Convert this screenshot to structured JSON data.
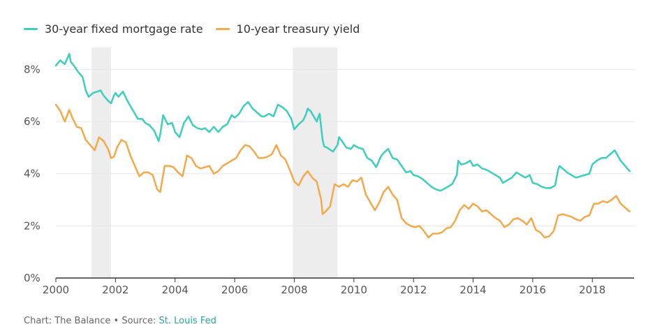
{
  "colors": {
    "mortgage": "#3dcfbd",
    "treasury": "#f5a94a",
    "recession": "#ededed",
    "grid": "#e6e6e6",
    "axis": "#333333",
    "source_link": "#27a69a"
  },
  "legend": {
    "mortgage_label": "30-year fixed mortgage rate",
    "treasury_label": "10-year treasury yield"
  },
  "footer": {
    "credit": "Chart: The Balance • Source: ",
    "source": "St. Louis Fed"
  },
  "chart_data": {
    "type": "line",
    "xlim": [
      2000,
      2019.4
    ],
    "ylim": [
      0,
      8.6
    ],
    "x_ticks": [
      2000,
      2002,
      2004,
      2006,
      2008,
      2010,
      2012,
      2014,
      2016,
      2018
    ],
    "y_ticks": [
      0,
      2,
      4,
      6,
      8
    ],
    "y_tick_labels": [
      "0%",
      "2%",
      "4%",
      "6%",
      "8%"
    ],
    "grid": "horizontal",
    "legend_position": "top-left",
    "recession_shading": [
      [
        2001.2,
        2001.85
      ],
      [
        2007.95,
        2009.45
      ]
    ],
    "series": [
      {
        "name": "30-year fixed mortgage rate",
        "x": [
          2000.0,
          2000.15,
          2000.3,
          2000.45,
          2000.5,
          2000.6,
          2000.75,
          2000.9,
          2001.0,
          2001.1,
          2001.25,
          2001.4,
          2001.5,
          2001.6,
          2001.75,
          2001.85,
          2001.95,
          2002.0,
          2002.1,
          2002.25,
          2002.4,
          2002.5,
          2002.6,
          2002.75,
          2002.9,
          2003.0,
          2003.15,
          2003.3,
          2003.45,
          2003.5,
          2003.6,
          2003.75,
          2003.9,
          2004.0,
          2004.15,
          2004.3,
          2004.45,
          2004.6,
          2004.75,
          2004.9,
          2005.0,
          2005.15,
          2005.3,
          2005.45,
          2005.6,
          2005.75,
          2005.9,
          2006.0,
          2006.15,
          2006.3,
          2006.45,
          2006.6,
          2006.75,
          2006.9,
          2007.0,
          2007.15,
          2007.3,
          2007.45,
          2007.6,
          2007.75,
          2007.9,
          2008.0,
          2008.15,
          2008.3,
          2008.4,
          2008.45,
          2008.55,
          2008.6,
          2008.75,
          2008.85,
          2008.95,
          2009.0,
          2009.1,
          2009.3,
          2009.45,
          2009.5,
          2009.6,
          2009.75,
          2009.9,
          2010.0,
          2010.15,
          2010.3,
          2010.45,
          2010.6,
          2010.75,
          2010.9,
          2011.0,
          2011.15,
          2011.3,
          2011.45,
          2011.6,
          2011.75,
          2011.9,
          2012.0,
          2012.15,
          2012.3,
          2012.45,
          2012.6,
          2012.75,
          2012.9,
          2013.0,
          2013.15,
          2013.3,
          2013.45,
          2013.5,
          2013.6,
          2013.75,
          2013.9,
          2014.0,
          2014.15,
          2014.3,
          2014.45,
          2014.6,
          2014.75,
          2014.9,
          2015.0,
          2015.15,
          2015.3,
          2015.45,
          2015.6,
          2015.75,
          2015.9,
          2016.0,
          2016.15,
          2016.3,
          2016.45,
          2016.6,
          2016.75,
          2016.85,
          2016.9,
          2017.0,
          2017.15,
          2017.3,
          2017.45,
          2017.6,
          2017.75,
          2017.9,
          2018.0,
          2018.15,
          2018.3,
          2018.45,
          2018.6,
          2018.75,
          2018.85,
          2018.95,
          2019.1,
          2019.25
        ],
        "y": [
          8.15,
          8.35,
          8.2,
          8.6,
          8.3,
          8.15,
          7.9,
          7.7,
          7.2,
          6.95,
          7.1,
          7.15,
          7.2,
          7.0,
          6.8,
          6.7,
          7.0,
          7.1,
          6.95,
          7.15,
          6.8,
          6.6,
          6.4,
          6.1,
          6.1,
          5.95,
          5.85,
          5.65,
          5.25,
          5.5,
          6.25,
          5.9,
          5.95,
          5.6,
          5.4,
          5.95,
          6.2,
          5.85,
          5.75,
          5.7,
          5.75,
          5.6,
          5.8,
          5.6,
          5.8,
          5.9,
          6.25,
          6.15,
          6.3,
          6.6,
          6.75,
          6.5,
          6.35,
          6.2,
          6.2,
          6.3,
          6.2,
          6.65,
          6.55,
          6.4,
          6.1,
          5.7,
          5.9,
          6.05,
          6.3,
          6.5,
          6.4,
          6.3,
          6.0,
          6.3,
          5.3,
          5.05,
          5.0,
          4.85,
          5.1,
          5.4,
          5.25,
          5.0,
          4.95,
          5.1,
          5.0,
          4.95,
          4.6,
          4.5,
          4.25,
          4.65,
          4.8,
          4.95,
          4.6,
          4.55,
          4.3,
          4.05,
          4.1,
          3.95,
          3.9,
          3.8,
          3.65,
          3.5,
          3.4,
          3.35,
          3.4,
          3.5,
          3.6,
          3.95,
          4.5,
          4.35,
          4.4,
          4.5,
          4.3,
          4.35,
          4.2,
          4.15,
          4.05,
          3.95,
          3.85,
          3.65,
          3.75,
          3.85,
          4.05,
          3.95,
          3.85,
          3.95,
          3.65,
          3.6,
          3.5,
          3.45,
          3.45,
          3.55,
          4.15,
          4.3,
          4.2,
          4.05,
          3.95,
          3.85,
          3.9,
          3.95,
          4.0,
          4.35,
          4.5,
          4.6,
          4.6,
          4.75,
          4.9,
          4.7,
          4.5,
          4.3,
          4.1
        ]
      },
      {
        "name": "10-year treasury yield",
        "x": [
          2000.0,
          2000.15,
          2000.3,
          2000.45,
          2000.55,
          2000.7,
          2000.85,
          2001.0,
          2001.15,
          2001.3,
          2001.45,
          2001.6,
          2001.75,
          2001.85,
          2001.95,
          2002.05,
          2002.2,
          2002.35,
          2002.5,
          2002.65,
          2002.8,
          2002.95,
          2003.1,
          2003.25,
          2003.4,
          2003.5,
          2003.65,
          2003.8,
          2003.95,
          2004.1,
          2004.25,
          2004.4,
          2004.55,
          2004.7,
          2004.85,
          2005.0,
          2005.15,
          2005.3,
          2005.45,
          2005.6,
          2005.75,
          2005.9,
          2006.05,
          2006.2,
          2006.35,
          2006.5,
          2006.65,
          2006.8,
          2006.95,
          2007.1,
          2007.25,
          2007.4,
          2007.55,
          2007.7,
          2007.85,
          2008.0,
          2008.15,
          2008.3,
          2008.45,
          2008.6,
          2008.75,
          2008.9,
          2008.95,
          2009.05,
          2009.2,
          2009.35,
          2009.5,
          2009.65,
          2009.8,
          2009.95,
          2010.1,
          2010.25,
          2010.4,
          2010.55,
          2010.7,
          2010.85,
          2011.0,
          2011.15,
          2011.3,
          2011.45,
          2011.6,
          2011.75,
          2011.9,
          2012.05,
          2012.2,
          2012.35,
          2012.5,
          2012.65,
          2012.8,
          2012.95,
          2013.1,
          2013.25,
          2013.4,
          2013.55,
          2013.7,
          2013.85,
          2014.0,
          2014.15,
          2014.3,
          2014.45,
          2014.6,
          2014.75,
          2014.9,
          2015.05,
          2015.2,
          2015.35,
          2015.5,
          2015.65,
          2015.8,
          2015.95,
          2016.1,
          2016.25,
          2016.4,
          2016.55,
          2016.7,
          2016.85,
          2017.0,
          2017.15,
          2017.3,
          2017.45,
          2017.6,
          2017.75,
          2017.9,
          2018.05,
          2018.2,
          2018.35,
          2018.5,
          2018.65,
          2018.8,
          2018.95,
          2019.1,
          2019.25
        ],
        "y": [
          6.65,
          6.4,
          6.0,
          6.45,
          6.15,
          5.8,
          5.75,
          5.3,
          5.1,
          4.9,
          5.4,
          5.25,
          4.95,
          4.6,
          4.65,
          5.0,
          5.3,
          5.2,
          4.7,
          4.3,
          3.9,
          4.05,
          4.05,
          3.95,
          3.4,
          3.3,
          4.3,
          4.3,
          4.25,
          4.05,
          3.9,
          4.7,
          4.6,
          4.3,
          4.2,
          4.25,
          4.3,
          4.0,
          4.1,
          4.3,
          4.4,
          4.5,
          4.6,
          4.9,
          5.1,
          5.05,
          4.85,
          4.6,
          4.6,
          4.65,
          4.75,
          5.1,
          4.7,
          4.55,
          4.15,
          3.7,
          3.55,
          3.9,
          4.1,
          3.85,
          3.7,
          3.0,
          2.45,
          2.55,
          2.75,
          3.6,
          3.5,
          3.6,
          3.5,
          3.75,
          3.7,
          3.85,
          3.2,
          2.9,
          2.6,
          2.9,
          3.3,
          3.5,
          3.2,
          3.0,
          2.3,
          2.1,
          2.0,
          1.95,
          2.0,
          1.8,
          1.55,
          1.7,
          1.7,
          1.75,
          1.9,
          1.95,
          2.2,
          2.6,
          2.8,
          2.65,
          2.85,
          2.75,
          2.55,
          2.6,
          2.45,
          2.3,
          2.2,
          1.95,
          2.05,
          2.25,
          2.3,
          2.2,
          2.05,
          2.3,
          1.85,
          1.75,
          1.55,
          1.6,
          1.8,
          2.4,
          2.45,
          2.4,
          2.35,
          2.25,
          2.2,
          2.35,
          2.4,
          2.85,
          2.85,
          2.95,
          2.9,
          3.0,
          3.15,
          2.85,
          2.7,
          2.55
        ]
      }
    ]
  }
}
